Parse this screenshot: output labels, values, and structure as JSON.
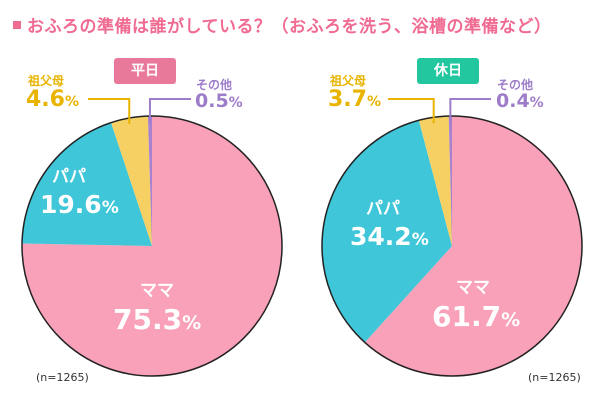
{
  "title": "おふろの準備は誰がしている？（おふろを洗う、浴槽の準備など）",
  "colors": {
    "title": "#f06b92",
    "mama": "#f9a1b8",
    "papa": "#3fc6d8",
    "grandparents": "#f7d064",
    "other": "#a882cf",
    "grand_text": "#e8b400",
    "other_text": "#9d7cc9"
  },
  "chart_data": [
    {
      "type": "pie",
      "title": "平日",
      "badge_color": "#e9799a",
      "note": "(n=1265)",
      "slices": [
        {
          "name": "ママ",
          "value": 75.3,
          "label": "75.3",
          "unit": "%"
        },
        {
          "name": "パパ",
          "value": 19.6,
          "label": "19.6",
          "unit": "%"
        },
        {
          "name": "祖父母",
          "value": 4.6,
          "label": "4.6",
          "unit": "%"
        },
        {
          "name": "その他",
          "value": 0.5,
          "label": "0.5",
          "unit": "%"
        }
      ]
    },
    {
      "type": "pie",
      "title": "休日",
      "badge_color": "#22c79f",
      "note": "(n=1265)",
      "slices": [
        {
          "name": "ママ",
          "value": 61.7,
          "label": "61.7",
          "unit": "%"
        },
        {
          "name": "パパ",
          "value": 34.2,
          "label": "34.2",
          "unit": "%"
        },
        {
          "name": "祖父母",
          "value": 3.7,
          "label": "3.7",
          "unit": "%"
        },
        {
          "name": "その他",
          "value": 0.4,
          "label": "0.4",
          "unit": "%"
        }
      ]
    }
  ]
}
